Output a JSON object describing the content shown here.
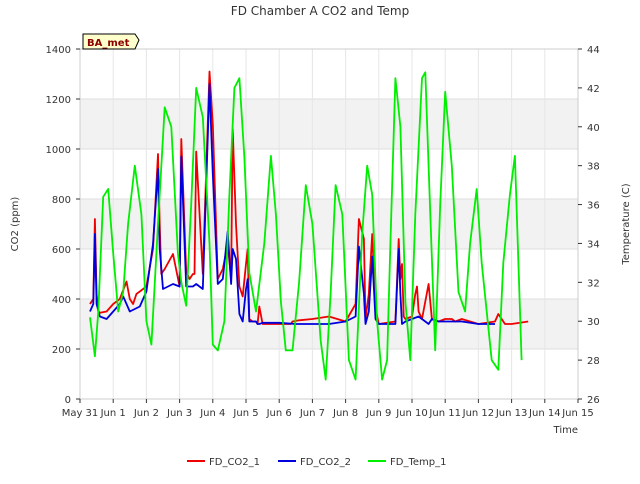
{
  "chart_data": {
    "type": "line",
    "title": "FD Chamber A CO2 and Temp",
    "xlabel": "Time",
    "ylabel_left": "CO2 (ppm)",
    "ylabel_right": "Temperature (C)",
    "annotation_label": "BA_met",
    "x_range": [
      "2023-05-31",
      "2023-06-15"
    ],
    "x_tick_labels": [
      "May 31",
      "Jun 1",
      "Jun 2",
      "Jun 3",
      "Jun 4",
      "Jun 5",
      "Jun 6",
      "Jun 7",
      "Jun 8",
      "Jun 9",
      "Jun 10",
      "Jun 11",
      "Jun 12",
      "Jun 13",
      "Jun 14",
      "Jun 15"
    ],
    "ylim_left": [
      0,
      1400
    ],
    "yticks_left": [
      0,
      200,
      400,
      600,
      800,
      1000,
      1200,
      1400
    ],
    "ylim_right": [
      26,
      44
    ],
    "yticks_right": [
      26,
      28,
      30,
      32,
      34,
      36,
      38,
      40,
      42,
      44
    ],
    "grid": true,
    "background_bands": "alternating gray/white horizontal bands every 200 ppm",
    "legend_position": "bottom-center",
    "series": [
      {
        "name": "FD_CO2_1",
        "axis": "left",
        "color": "#ee0000",
        "x": [
          0.3,
          0.4,
          0.45,
          0.5,
          0.55,
          0.6,
          0.8,
          1.0,
          1.2,
          1.4,
          1.5,
          1.6,
          1.7,
          1.8,
          2.0,
          2.2,
          2.35,
          2.4,
          2.45,
          2.55,
          2.8,
          3.0,
          3.05,
          3.2,
          3.3,
          3.4,
          3.45,
          3.5,
          3.7,
          3.9,
          4.0,
          4.15,
          4.3,
          4.45,
          4.55,
          4.6,
          4.7,
          4.8,
          4.9,
          5.0,
          5.05,
          5.1,
          5.2,
          5.3,
          5.35,
          5.4,
          5.5,
          6.0,
          6.3,
          6.35,
          6.4,
          6.6,
          7.0,
          7.5,
          8.0,
          8.3,
          8.4,
          8.55,
          8.6,
          8.7,
          8.8,
          8.9,
          9.0,
          9.5,
          9.6,
          9.65,
          9.7,
          9.75,
          9.8,
          10.0,
          10.1,
          10.15,
          10.2,
          10.3,
          10.5,
          10.6,
          10.8,
          11.0,
          11.2,
          11.3,
          11.5,
          12.0,
          12.5,
          12.6,
          12.8,
          13.0,
          13.5
        ],
        "y": [
          380,
          400,
          720,
          420,
          350,
          345,
          350,
          380,
          400,
          470,
          400,
          380,
          420,
          430,
          450,
          600,
          980,
          700,
          500,
          520,
          580,
          450,
          1040,
          510,
          480,
          500,
          500,
          990,
          500,
          1310,
          1100,
          480,
          520,
          620,
          480,
          1080,
          700,
          450,
          410,
          540,
          600,
          320,
          310,
          310,
          300,
          370,
          300,
          300,
          300,
          300,
          310,
          315,
          320,
          330,
          310,
          380,
          720,
          640,
          320,
          420,
          660,
          360,
          300,
          310,
          640,
          480,
          540,
          330,
          320,
          330,
          420,
          450,
          350,
          320,
          460,
          320,
          310,
          320,
          320,
          310,
          320,
          300,
          310,
          340,
          300,
          300,
          310
        ]
      },
      {
        "name": "FD_CO2_2",
        "axis": "left",
        "color": "#0000dd",
        "x": [
          0.3,
          0.4,
          0.45,
          0.5,
          0.6,
          0.8,
          1.0,
          1.2,
          1.3,
          1.5,
          1.8,
          2.0,
          2.2,
          2.35,
          2.4,
          2.5,
          2.8,
          3.0,
          3.05,
          3.2,
          3.4,
          3.5,
          3.7,
          3.9,
          4.0,
          4.15,
          4.3,
          4.45,
          4.55,
          4.6,
          4.7,
          4.8,
          4.9,
          5.0,
          5.05,
          5.1,
          5.2,
          5.3,
          5.35,
          5.4,
          5.5,
          6.0,
          6.5,
          7.0,
          7.5,
          8.0,
          8.3,
          8.4,
          8.55,
          8.6,
          8.7,
          8.8,
          8.9,
          9.0,
          9.5,
          9.6,
          9.65,
          9.7,
          9.8,
          10.0,
          10.2,
          10.4,
          10.5,
          10.6,
          10.8,
          11.0,
          11.5,
          12.0,
          12.5
        ],
        "y": [
          350,
          380,
          660,
          380,
          330,
          320,
          350,
          380,
          410,
          350,
          370,
          430,
          620,
          920,
          600,
          440,
          460,
          450,
          970,
          450,
          450,
          460,
          440,
          1260,
          900,
          460,
          480,
          670,
          460,
          600,
          560,
          340,
          310,
          440,
          480,
          310,
          310,
          310,
          300,
          300,
          305,
          305,
          300,
          300,
          300,
          310,
          330,
          610,
          420,
          300,
          350,
          570,
          320,
          300,
          300,
          600,
          420,
          300,
          310,
          320,
          330,
          310,
          300,
          320,
          310,
          310,
          310,
          300,
          300
        ]
      },
      {
        "name": "FD_Temp_1",
        "axis": "right",
        "color": "#00ee00",
        "x": [
          0.3,
          0.45,
          0.55,
          0.7,
          0.85,
          1.0,
          1.15,
          1.3,
          1.45,
          1.65,
          1.85,
          2.0,
          2.15,
          2.35,
          2.55,
          2.75,
          2.95,
          3.05,
          3.2,
          3.35,
          3.5,
          3.7,
          3.9,
          4.0,
          4.15,
          4.35,
          4.5,
          4.65,
          4.8,
          4.95,
          5.1,
          5.3,
          5.55,
          5.75,
          5.9,
          6.05,
          6.2,
          6.4,
          6.6,
          6.8,
          7.0,
          7.25,
          7.4,
          7.55,
          7.7,
          7.9,
          8.1,
          8.3,
          8.5,
          8.65,
          8.8,
          8.95,
          9.1,
          9.25,
          9.35,
          9.5,
          9.65,
          9.8,
          9.95,
          10.1,
          10.3,
          10.4,
          10.55,
          10.7,
          10.85,
          11.0,
          11.2,
          11.4,
          11.6,
          11.75,
          11.95,
          12.1,
          12.25,
          12.4,
          12.6,
          12.75,
          12.95,
          13.1,
          13.3
        ],
        "y": [
          30.2,
          28.2,
          30.5,
          36.4,
          36.8,
          33.5,
          30.5,
          31.5,
          35.0,
          38.0,
          35.5,
          30.0,
          28.8,
          35.0,
          41.0,
          40.0,
          33.5,
          32.0,
          30.8,
          36.0,
          42.0,
          40.5,
          34.0,
          28.8,
          28.5,
          30.0,
          36.5,
          42.0,
          42.5,
          38.5,
          32.5,
          30.5,
          34.0,
          38.5,
          35.5,
          31.0,
          28.5,
          28.5,
          32.0,
          37.0,
          35.0,
          29.0,
          27.0,
          31.5,
          37.0,
          35.5,
          28.0,
          27.0,
          34.5,
          38.0,
          36.5,
          30.0,
          27.0,
          28.0,
          34.0,
          42.5,
          40.0,
          31.0,
          28.0,
          35.5,
          42.5,
          42.8,
          35.5,
          28.5,
          36.0,
          41.8,
          38.0,
          31.5,
          30.5,
          34.0,
          36.8,
          33.0,
          30.5,
          28.0,
          27.5,
          33.0,
          36.5,
          38.5,
          28.0
        ]
      }
    ]
  }
}
